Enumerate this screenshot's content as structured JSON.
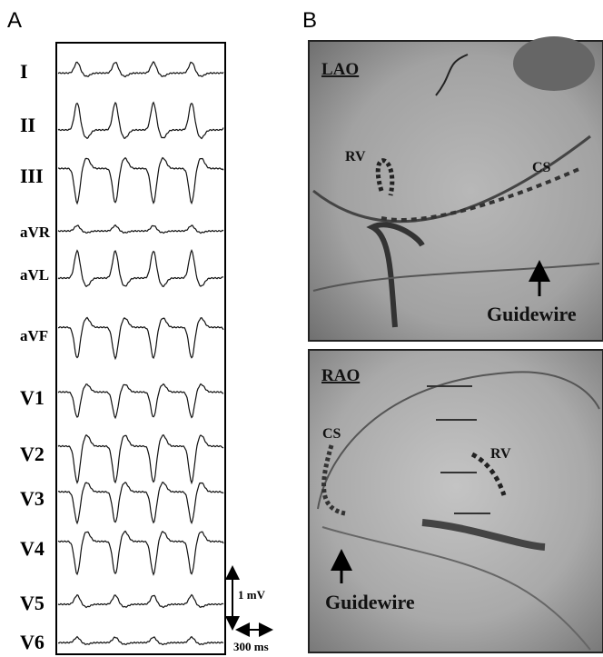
{
  "panel_a": {
    "label": "A",
    "leads": [
      "I",
      "II",
      "III",
      "aVR",
      "aVL",
      "aVF",
      "V1",
      "V2",
      "V3",
      "V4",
      "V5",
      "V6"
    ],
    "scale_voltage": "1 mV",
    "scale_time": "300 ms"
  },
  "panel_b": {
    "label": "B",
    "images": [
      {
        "view": "LAO",
        "labels": [
          "RV",
          "CS"
        ],
        "annotation": "Guidewire"
      },
      {
        "view": "RAO",
        "labels": [
          "CS",
          "RV"
        ],
        "annotation": "Guidewire"
      }
    ]
  }
}
